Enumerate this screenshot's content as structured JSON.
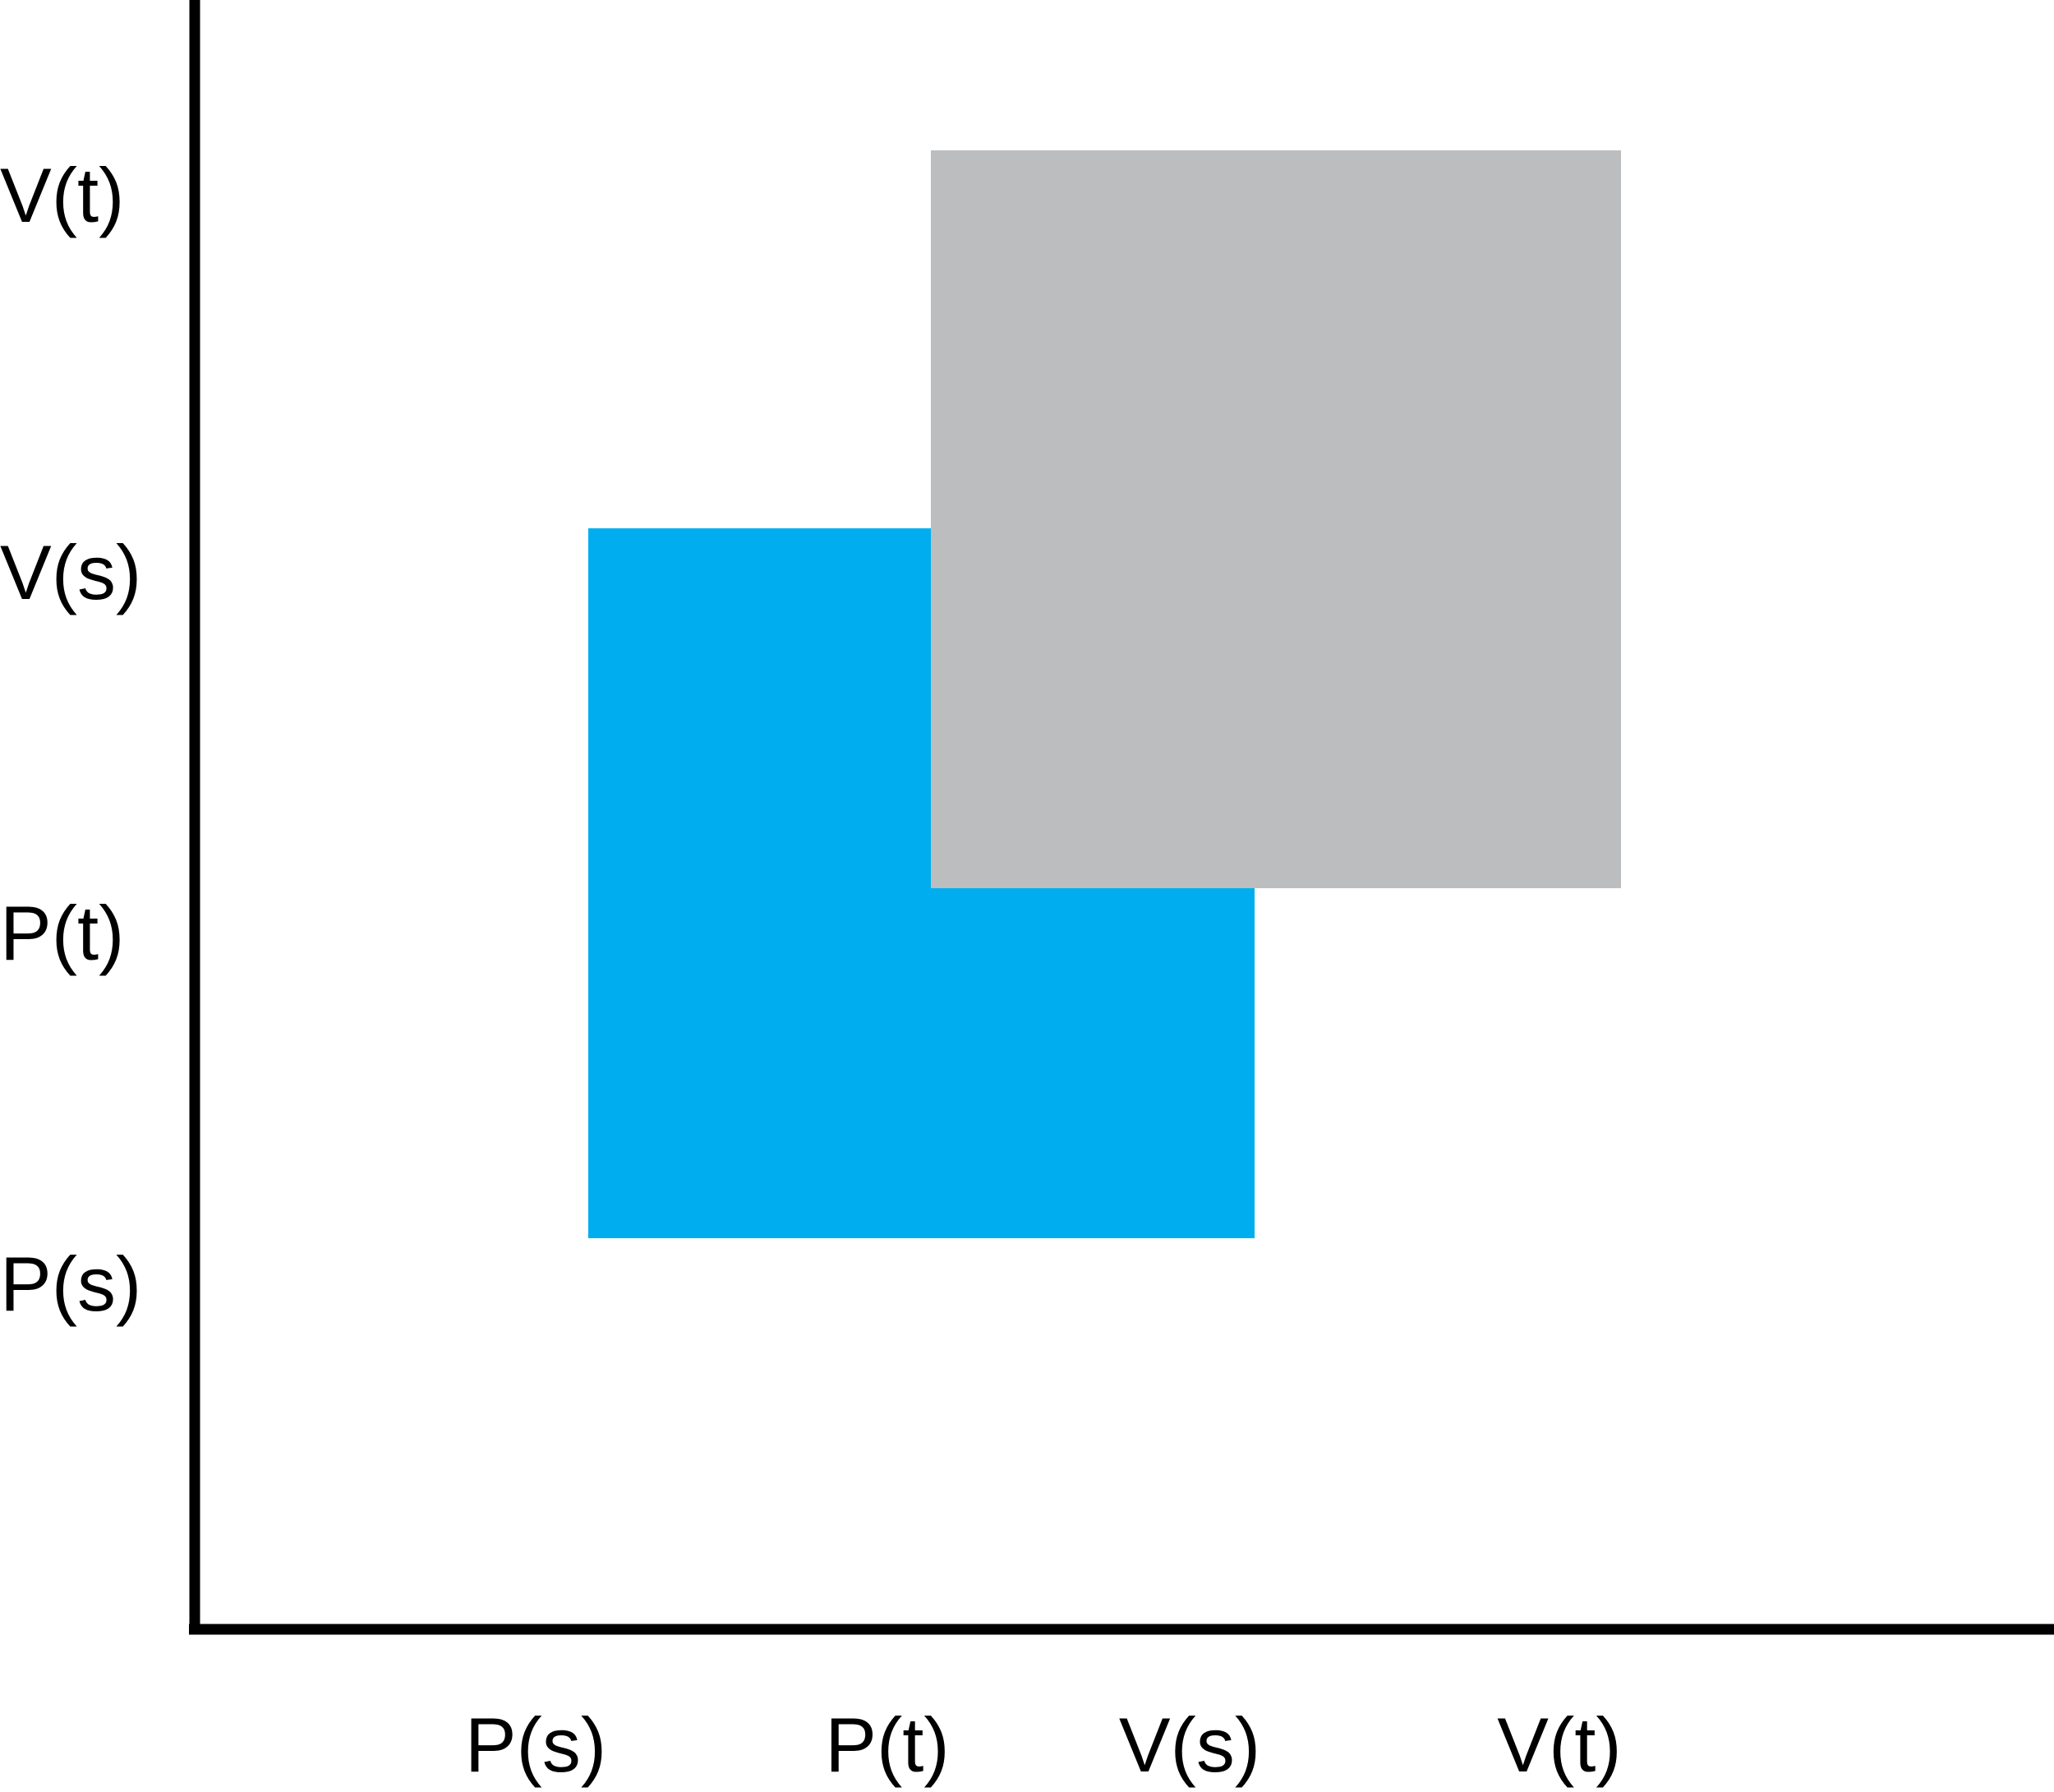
{
  "x_axis": {
    "ticks": [
      "P(s)",
      "P(t)",
      "V(s)",
      "V(t)"
    ]
  },
  "y_axis": {
    "ticks": [
      "P(s)",
      "P(t)",
      "V(s)",
      "V(t)"
    ]
  },
  "regions": [
    {
      "x_from": "P(s)",
      "x_to": "V(s)",
      "y_from": "P(s)",
      "y_to": "V(s)",
      "color": "#00AEEF"
    },
    {
      "x_from": "P(t)",
      "x_to": "V(t)",
      "y_from": "P(t)",
      "y_to": "V(t)",
      "color": "#BCBDBF"
    }
  ],
  "axis_color": "#000000"
}
